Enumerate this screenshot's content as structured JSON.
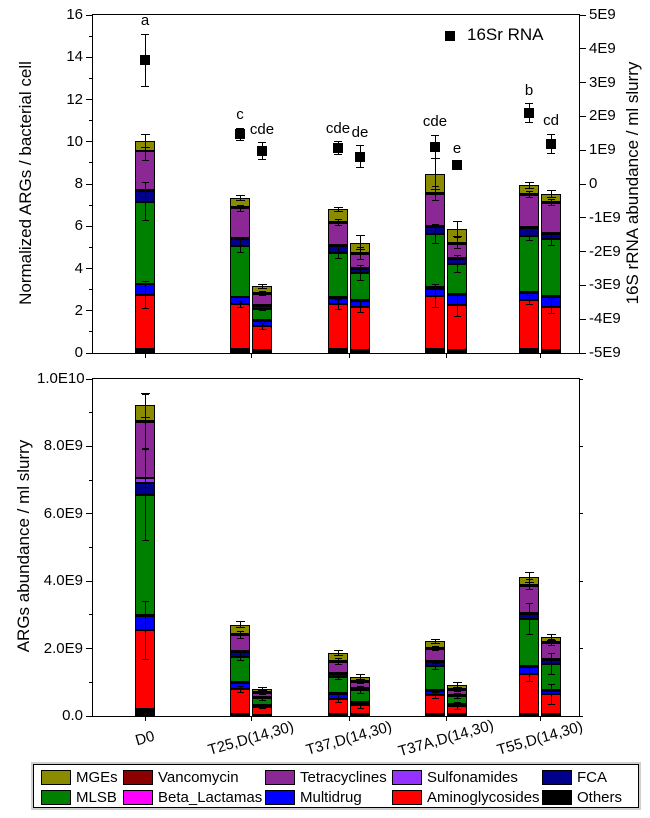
{
  "figure": {
    "background": "#FFFFFF",
    "text_color": "#000000"
  },
  "legend": {
    "items": [
      {
        "label": "MGEs",
        "color": "#8B8B00"
      },
      {
        "label": "Vancomycin",
        "color": "#8B0000"
      },
      {
        "label": "Tetracyclines",
        "color": "#8C2896"
      },
      {
        "label": "Sulfonamides",
        "color": "#9632FF"
      },
      {
        "label": "FCA",
        "color": "#00008B"
      },
      {
        "label": "MLSB",
        "color": "#008000"
      },
      {
        "label": "Beta_Lactamas",
        "color": "#FF00FF"
      },
      {
        "label": "Multidrug",
        "color": "#0000FF"
      },
      {
        "label": "Aminoglycosides",
        "color": "#FF0000"
      },
      {
        "label": "Others",
        "color": "#000000"
      }
    ]
  },
  "chart_data": [
    {
      "type": "bar",
      "stacked": true,
      "panel": "top",
      "ylabel": "Normalized ARGs / bacterial cell",
      "ylabel_right": "16S rRNA abundance / ml slurry",
      "ylim": [
        0,
        16
      ],
      "yticks": [
        0,
        2,
        4,
        6,
        8,
        10,
        12,
        14,
        16
      ],
      "ytick_labels": [
        "0",
        "2",
        "4",
        "6",
        "8",
        "10",
        "12",
        "14",
        "16"
      ],
      "ylim_right": [
        -5000000000,
        5000000000
      ],
      "ytick_labels_right": [
        "5E9",
        "4E9",
        "3E9",
        "2E9",
        "1E9",
        "0",
        "-1E9",
        "-2E9",
        "-3E9",
        "-4E9",
        "-5E9"
      ],
      "categories": [
        "D0",
        "T25,D(14,30)",
        "T37,D(14,30)",
        "T37A,D(14,30)",
        "T55,D(14,30)"
      ],
      "series_order": [
        "Others",
        "Aminoglycosides",
        "Multidrug",
        "Beta_Lactamas",
        "MLSB",
        "FCA",
        "Sulfonamides",
        "Tetracyclines",
        "Vancomycin",
        "MGEs"
      ],
      "bars": [
        {
          "group": 0,
          "slot": 0.5,
          "stack": {
            "Others": 0.2,
            "Aminoglycosides": 2.55,
            "Multidrug": 0.5,
            "Beta_Lactamas": 0,
            "MLSB": 3.9,
            "FCA": 0.5,
            "Sulfonamides": 0.05,
            "Tetracyclines": 1.85,
            "Vancomycin": 0,
            "MGEs": 0.5
          },
          "err_total": 0.3,
          "err_inner": {
            "Aminoglycosides": 0.65,
            "MLSB": 0.9,
            "Tetracyclines": 0.45
          }
        },
        {
          "group": 1,
          "slot": 0,
          "stack": {
            "Others": 0.2,
            "Aminoglycosides": 2.1,
            "Multidrug": 0.35,
            "Beta_Lactamas": 0,
            "MLSB": 2.4,
            "FCA": 0.35,
            "Sulfonamides": 0.05,
            "Tetracyclines": 1.4,
            "Vancomycin": 0.04,
            "MGEs": 0.45
          },
          "err_total": 0.12,
          "err_inner": {
            "Aminoglycosides": 0.15,
            "MLSB": 0.3,
            "Tetracyclines": 0.15
          }
        },
        {
          "group": 1,
          "slot": 1,
          "stack": {
            "Others": 0.12,
            "Aminoglycosides": 1.15,
            "Multidrug": 0.25,
            "Beta_Lactamas": 0.03,
            "MLSB": 0.55,
            "FCA": 0.12,
            "Sulfonamides": 0.03,
            "Tetracyclines": 0.55,
            "Vancomycin": 0.02,
            "MGEs": 0.33
          },
          "err_total": 0.1,
          "err_inner": {
            "Aminoglycosides": 0.15,
            "MLSB": 0.1,
            "Tetracyclines": 0.1
          }
        },
        {
          "group": 2,
          "slot": 0,
          "stack": {
            "Others": 0.2,
            "Aminoglycosides": 2.1,
            "Multidrug": 0.3,
            "Beta_Lactamas": 0.05,
            "MLSB": 2.1,
            "FCA": 0.3,
            "Sulfonamides": 0.04,
            "Tetracyclines": 1.1,
            "Vancomycin": 0.02,
            "MGEs": 0.6
          },
          "err_total": 0.1,
          "err_inner": {
            "Aminoglycosides": 0.25,
            "MLSB": 0.3,
            "Tetracyclines": 0.15
          }
        },
        {
          "group": 2,
          "slot": 1,
          "stack": {
            "Others": 0.15,
            "Aminoglycosides": 2.05,
            "Multidrug": 0.3,
            "Beta_Lactamas": 0.03,
            "MLSB": 1.25,
            "FCA": 0.2,
            "Sulfonamides": 0.03,
            "Tetracyclines": 0.7,
            "Vancomycin": 0.02,
            "MGEs": 0.5
          },
          "err_total": 0.35,
          "err_inner": {
            "Aminoglycosides": 0.3,
            "MLSB": 0.35,
            "Tetracyclines": 0.3
          }
        },
        {
          "group": 3,
          "slot": 0,
          "stack": {
            "Others": 0.2,
            "Aminoglycosides": 2.5,
            "Multidrug": 0.35,
            "Beta_Lactamas": 0.06,
            "MLSB": 2.5,
            "FCA": 0.35,
            "Sulfonamides": 0.04,
            "Tetracyclines": 1.55,
            "Vancomycin": 0.02,
            "MGEs": 0.9
          },
          "err_total": 0.75,
          "err_inner": {
            "Aminoglycosides": 0.55,
            "MLSB": 0.45,
            "Tetracyclines": 0.35
          }
        },
        {
          "group": 3,
          "slot": 1,
          "stack": {
            "Others": 0.15,
            "Aminoglycosides": 2.1,
            "Multidrug": 0.5,
            "Beta_Lactamas": 0.03,
            "MLSB": 1.45,
            "FCA": 0.25,
            "Sulfonamides": 0.03,
            "Tetracyclines": 0.7,
            "Vancomycin": 0.02,
            "MGEs": 0.65
          },
          "err_total": 0.35,
          "err_inner": {
            "Aminoglycosides": 0.5,
            "MLSB": 0.4,
            "Tetracyclines": 0.25
          }
        },
        {
          "group": 4,
          "slot": 0,
          "stack": {
            "Others": 0.2,
            "Aminoglycosides": 2.3,
            "Multidrug": 0.35,
            "Beta_Lactamas": 0.03,
            "MLSB": 2.65,
            "FCA": 0.4,
            "Sulfonamides": 0.03,
            "Tetracyclines": 1.55,
            "Vancomycin": 0.02,
            "MGEs": 0.4
          },
          "err_total": 0.12,
          "err_inner": {
            "Aminoglycosides": 0.2,
            "MLSB": 0.2,
            "Tetracyclines": 0.15
          }
        },
        {
          "group": 4,
          "slot": 1,
          "stack": {
            "Others": 0.15,
            "Aminoglycosides": 2.05,
            "Multidrug": 0.45,
            "Beta_Lactamas": 0.03,
            "MLSB": 2.7,
            "FCA": 0.25,
            "Sulfonamides": 0.03,
            "Tetracyclines": 1.45,
            "Vancomycin": 0.02,
            "MGEs": 0.4
          },
          "err_total": 0.15,
          "err_inner": {
            "Aminoglycosides": 0.35,
            "MLSB": 0.3,
            "Tetracyclines": 0.15
          }
        }
      ],
      "scatter": {
        "label": "16Sr RNA",
        "marker": "black-square",
        "points": [
          {
            "group": 0,
            "slot": 0.5,
            "value": 13.85,
            "err": 1.25,
            "letter": "a"
          },
          {
            "group": 1,
            "slot": 0,
            "value": 10.35,
            "err": 0.3,
            "letter": "c"
          },
          {
            "group": 1,
            "slot": 1,
            "value": 9.55,
            "err": 0.4,
            "letter": "cde"
          },
          {
            "group": 2,
            "slot": 0,
            "value": 9.7,
            "err": 0.3,
            "letter": "cde"
          },
          {
            "group": 2,
            "slot": 1,
            "value": 9.3,
            "err": 0.5,
            "letter": "de"
          },
          {
            "group": 3,
            "slot": 0,
            "value": 9.75,
            "err": 0.55,
            "letter": "cde"
          },
          {
            "group": 3,
            "slot": 1,
            "value": 8.9,
            "err": 0.15,
            "letter": "e"
          },
          {
            "group": 4,
            "slot": 0,
            "value": 11.35,
            "err": 0.45,
            "letter": "b"
          },
          {
            "group": 4,
            "slot": 1,
            "value": 9.9,
            "err": 0.45,
            "letter": "cd"
          }
        ]
      }
    },
    {
      "type": "bar",
      "stacked": true,
      "panel": "bottom",
      "ylabel": "ARGs abundance / ml slurry",
      "unit_multiplier": 1000000000,
      "ylim": [
        0,
        10
      ],
      "yticks": [
        0,
        2,
        4,
        6,
        8,
        10
      ],
      "ytick_labels": [
        "0.0",
        "2.0E9",
        "4.0E9",
        "6.0E9",
        "8.0E9",
        "1.0E10"
      ],
      "categories": [
        "D0",
        "T25,D(14,30)",
        "T37,D(14,30)",
        "T37A,D(14,30)",
        "T55,D(14,30)"
      ],
      "series_order": [
        "Others",
        "Aminoglycosides",
        "Multidrug",
        "Beta_Lactamas",
        "MLSB",
        "FCA",
        "Sulfonamides",
        "Tetracyclines",
        "Vancomycin",
        "MGEs"
      ],
      "bars": [
        {
          "group": 0,
          "slot": 0.5,
          "stack": {
            "Others": 0.22,
            "Aminoglycosides": 2.32,
            "Multidrug": 0.43,
            "Beta_Lactamas": 0.02,
            "MLSB": 3.58,
            "FCA": 0.33,
            "Sulfonamides": 0.15,
            "Tetracyclines": 1.68,
            "Vancomycin": 0.02,
            "MGEs": 0.47
          },
          "err_total": 0.35,
          "err_inner": {
            "Aminoglycosides": 0.85,
            "MLSB": 1.35,
            "Tetracyclines": 0.8
          }
        },
        {
          "group": 1,
          "slot": 0,
          "stack": {
            "Others": 0.05,
            "Aminoglycosides": 0.74,
            "Multidrug": 0.22,
            "Beta_Lactamas": 0.01,
            "MLSB": 0.74,
            "FCA": 0.15,
            "Sulfonamides": 0.02,
            "Tetracyclines": 0.48,
            "Vancomycin": 0.02,
            "MGEs": 0.28
          },
          "err_total": 0.08,
          "err_inner": {
            "Aminoglycosides": 0.1,
            "MLSB": 0.12,
            "Tetracyclines": 0.1
          }
        },
        {
          "group": 1,
          "slot": 1,
          "stack": {
            "Others": 0.04,
            "Aminoglycosides": 0.24,
            "Multidrug": 0.05,
            "Beta_Lactamas": 0.01,
            "MLSB": 0.19,
            "FCA": 0.03,
            "Sulfonamides": 0.01,
            "Tetracyclines": 0.13,
            "Vancomycin": 0.01,
            "MGEs": 0.1
          },
          "err_total": 0.05,
          "err_inner": {
            "Aminoglycosides": 0.06,
            "MLSB": 0.06,
            "Tetracyclines": 0.05
          }
        },
        {
          "group": 2,
          "slot": 0,
          "stack": {
            "Others": 0.07,
            "Aminoglycosides": 0.44,
            "Multidrug": 0.15,
            "Beta_Lactamas": 0.01,
            "MLSB": 0.5,
            "FCA": 0.1,
            "Sulfonamides": 0.02,
            "Tetracyclines": 0.33,
            "Vancomycin": 0.01,
            "MGEs": 0.24
          },
          "err_total": 0.07,
          "err_inner": {
            "Aminoglycosides": 0.12,
            "MLSB": 0.1,
            "Tetracyclines": 0.08
          }
        },
        {
          "group": 2,
          "slot": 1,
          "stack": {
            "Others": 0.05,
            "Aminoglycosides": 0.27,
            "Multidrug": 0.1,
            "Beta_Lactamas": 0.01,
            "MLSB": 0.34,
            "FCA": 0.05,
            "Sulfonamides": 0.01,
            "Tetracyclines": 0.19,
            "Vancomycin": 0.01,
            "MGEs": 0.12
          },
          "err_total": 0.07,
          "err_inner": {
            "Aminoglycosides": 0.1,
            "MLSB": 0.1,
            "Tetracyclines": 0.06
          }
        },
        {
          "group": 3,
          "slot": 0,
          "stack": {
            "Others": 0.07,
            "Aminoglycosides": 0.54,
            "Multidrug": 0.15,
            "Beta_Lactamas": 0.01,
            "MLSB": 0.7,
            "FCA": 0.13,
            "Sulfonamides": 0.02,
            "Tetracyclines": 0.38,
            "Vancomycin": 0.01,
            "MGEs": 0.21
          },
          "err_total": 0.06,
          "err_inner": {
            "Aminoglycosides": 0.08,
            "MLSB": 0.08,
            "Tetracyclines": 0.06
          }
        },
        {
          "group": 3,
          "slot": 1,
          "stack": {
            "Others": 0.05,
            "Aminoglycosides": 0.24,
            "Multidrug": 0.05,
            "Beta_Lactamas": 0.01,
            "MLSB": 0.24,
            "FCA": 0.03,
            "Sulfonamides": 0.01,
            "Tetracyclines": 0.15,
            "Vancomycin": 0.01,
            "MGEs": 0.13
          },
          "err_total": 0.06,
          "err_inner": {
            "Aminoglycosides": 0.1,
            "MLSB": 0.08,
            "Tetracyclines": 0.05
          }
        },
        {
          "group": 4,
          "slot": 0,
          "stack": {
            "Others": 0.07,
            "Aminoglycosides": 1.19,
            "Multidrug": 0.2,
            "Beta_Lactamas": 0.01,
            "MLSB": 1.41,
            "FCA": 0.17,
            "Sulfonamides": 0.02,
            "Tetracyclines": 0.82,
            "Vancomycin": 0.01,
            "MGEs": 0.22
          },
          "err_total": 0.15,
          "err_inner": {
            "Aminoglycosides": 0.25,
            "MLSB": 0.45,
            "Tetracyclines": 0.15
          }
        },
        {
          "group": 4,
          "slot": 1,
          "stack": {
            "Others": 0.05,
            "Aminoglycosides": 0.59,
            "Multidrug": 0.13,
            "Beta_Lactamas": 0.01,
            "MLSB": 0.76,
            "FCA": 0.15,
            "Sulfonamides": 0.01,
            "Tetracyclines": 0.48,
            "Vancomycin": 0.01,
            "MGEs": 0.14
          },
          "err_total": 0.08,
          "err_inner": {
            "Aminoglycosides": 0.3,
            "MLSB": 0.3,
            "Tetracyclines": 0.1
          }
        }
      ]
    }
  ]
}
